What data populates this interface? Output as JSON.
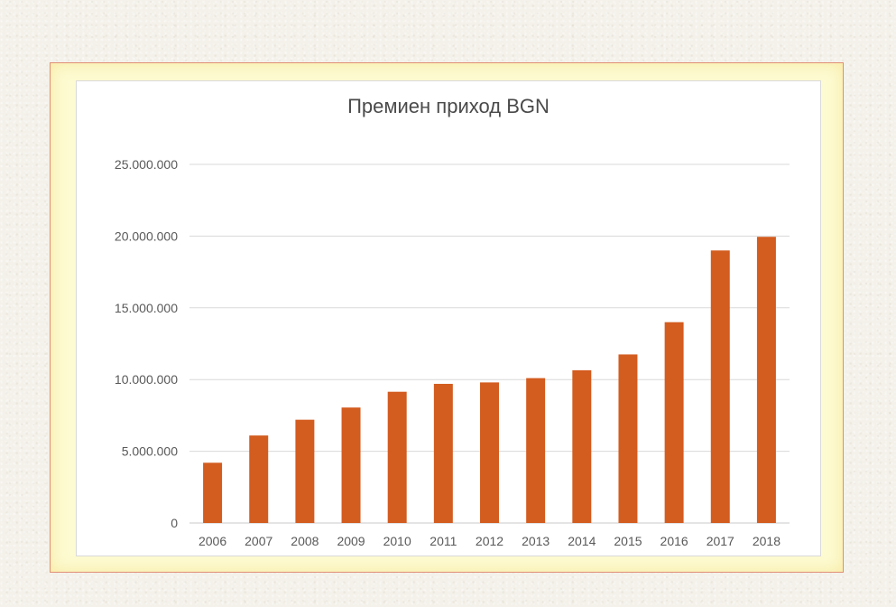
{
  "chart_data": {
    "type": "bar",
    "title": "Премиен приход BGN",
    "xlabel": "",
    "ylabel": "",
    "categories": [
      "2006",
      "2007",
      "2008",
      "2009",
      "2010",
      "2011",
      "2012",
      "2013",
      "2014",
      "2015",
      "2016",
      "2017",
      "2018"
    ],
    "values": [
      4200000,
      6100000,
      7200000,
      8050000,
      9150000,
      9700000,
      9800000,
      10100000,
      10650000,
      11750000,
      14000000,
      19000000,
      19950000
    ],
    "ylim": [
      0,
      25000000
    ],
    "y_ticks": [
      0,
      5000000,
      10000000,
      15000000,
      20000000,
      25000000
    ],
    "y_tick_labels": [
      "0",
      "5.000.000",
      "10.000.000",
      "15.000.000",
      "20.000.000",
      "25.000.000"
    ],
    "grid": true,
    "legend": "none",
    "bar_color": "#d35c1f"
  }
}
